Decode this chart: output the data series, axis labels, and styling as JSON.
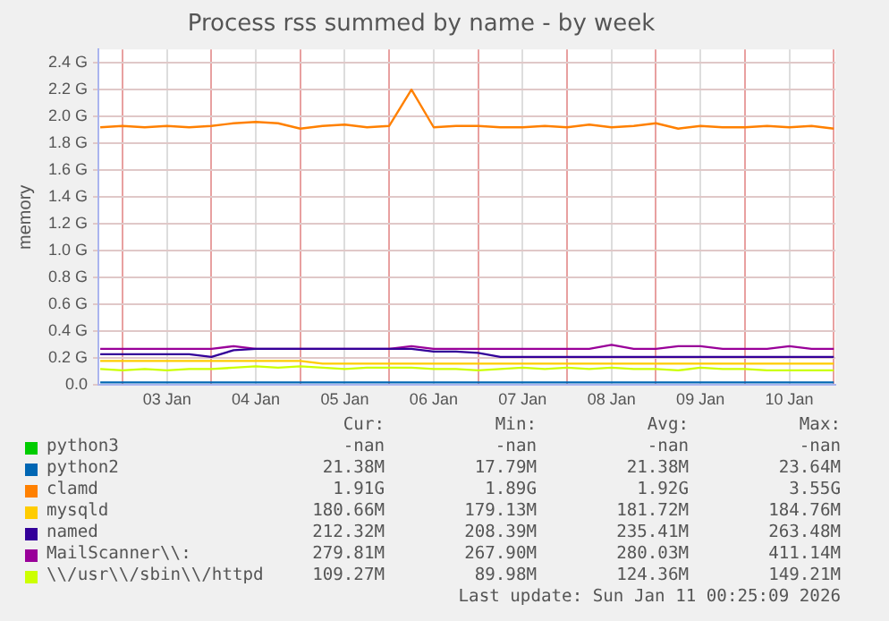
{
  "chart_data": {
    "type": "line",
    "title": "Process rss summed by name - by week",
    "ylabel": "memory",
    "x": [
      "2026-01-02T18:00",
      "2026-01-03T00:00",
      "2026-01-03T06:00",
      "2026-01-03T12:00",
      "2026-01-03T18:00",
      "2026-01-04T00:00",
      "2026-01-04T06:00",
      "2026-01-04T12:00",
      "2026-01-04T18:00",
      "2026-01-05T00:00",
      "2026-01-05T06:00",
      "2026-01-05T12:00",
      "2026-01-05T18:00",
      "2026-01-06T00:00",
      "2026-01-06T06:00",
      "2026-01-06T12:00",
      "2026-01-06T18:00",
      "2026-01-07T00:00",
      "2026-01-07T06:00",
      "2026-01-07T12:00",
      "2026-01-07T18:00",
      "2026-01-08T00:00",
      "2026-01-08T06:00",
      "2026-01-08T12:00",
      "2026-01-08T18:00",
      "2026-01-09T00:00",
      "2026-01-09T06:00",
      "2026-01-09T12:00",
      "2026-01-09T18:00",
      "2026-01-10T00:00",
      "2026-01-10T06:00",
      "2026-01-10T12:00",
      "2026-01-10T18:00",
      "2026-01-11T00:00"
    ],
    "series": [
      {
        "name": "python3",
        "color": "#00cc00",
        "values": [
          null,
          null,
          null,
          null,
          null,
          null,
          null,
          null,
          null,
          null,
          null,
          null,
          null,
          null,
          null,
          null,
          null,
          null,
          null,
          null,
          null,
          null,
          null,
          null,
          null,
          null,
          null,
          null,
          null,
          null,
          null,
          null,
          null,
          null
        ]
      },
      {
        "name": "python2",
        "color": "#0066b3",
        "values": [
          0.02,
          0.02,
          0.02,
          0.02,
          0.02,
          0.02,
          0.02,
          0.02,
          0.02,
          0.02,
          0.02,
          0.02,
          0.02,
          0.02,
          0.02,
          0.02,
          0.02,
          0.02,
          0.02,
          0.02,
          0.02,
          0.02,
          0.02,
          0.02,
          0.02,
          0.02,
          0.02,
          0.02,
          0.02,
          0.02,
          0.02,
          0.02,
          0.02,
          0.02
        ]
      },
      {
        "name": "clamd",
        "color": "#ff8000",
        "values": [
          1.92,
          1.93,
          1.92,
          1.93,
          1.92,
          1.93,
          1.95,
          1.96,
          1.95,
          1.91,
          1.93,
          1.94,
          1.92,
          1.93,
          2.2,
          1.92,
          1.93,
          1.93,
          1.92,
          1.92,
          1.93,
          1.92,
          1.94,
          1.92,
          1.93,
          1.95,
          1.91,
          1.93,
          1.92,
          1.92,
          1.93,
          1.92,
          1.93,
          1.91
        ]
      },
      {
        "name": "mysqld",
        "color": "#ffcc00",
        "values": [
          0.18,
          0.18,
          0.18,
          0.18,
          0.18,
          0.18,
          0.18,
          0.18,
          0.18,
          0.18,
          0.16,
          0.16,
          0.16,
          0.16,
          0.16,
          0.16,
          0.16,
          0.16,
          0.16,
          0.16,
          0.16,
          0.16,
          0.16,
          0.16,
          0.16,
          0.16,
          0.16,
          0.16,
          0.16,
          0.16,
          0.16,
          0.16,
          0.16,
          0.16
        ]
      },
      {
        "name": "named",
        "color": "#330099",
        "values": [
          0.23,
          0.23,
          0.23,
          0.23,
          0.23,
          0.21,
          0.26,
          0.27,
          0.27,
          0.27,
          0.27,
          0.27,
          0.27,
          0.27,
          0.27,
          0.25,
          0.25,
          0.24,
          0.21,
          0.21,
          0.21,
          0.21,
          0.21,
          0.21,
          0.21,
          0.21,
          0.21,
          0.21,
          0.21,
          0.21,
          0.21,
          0.21,
          0.21,
          0.21
        ]
      },
      {
        "name": "MailScanner\\\\:",
        "color": "#990099",
        "values": [
          0.27,
          0.27,
          0.27,
          0.27,
          0.27,
          0.27,
          0.29,
          0.27,
          0.27,
          0.27,
          0.27,
          0.27,
          0.27,
          0.27,
          0.29,
          0.27,
          0.27,
          0.27,
          0.27,
          0.27,
          0.27,
          0.27,
          0.27,
          0.3,
          0.27,
          0.27,
          0.29,
          0.29,
          0.27,
          0.27,
          0.27,
          0.29,
          0.27,
          0.27
        ]
      },
      {
        "name": "\\\\/usr\\\\/sbin\\\\/httpd",
        "color": "#ccff00",
        "values": [
          0.12,
          0.11,
          0.12,
          0.11,
          0.12,
          0.12,
          0.13,
          0.14,
          0.13,
          0.14,
          0.13,
          0.12,
          0.13,
          0.13,
          0.13,
          0.12,
          0.12,
          0.11,
          0.12,
          0.13,
          0.12,
          0.13,
          0.12,
          0.13,
          0.12,
          0.12,
          0.11,
          0.13,
          0.12,
          0.12,
          0.11,
          0.11,
          0.11,
          0.11
        ]
      }
    ],
    "xlim": [
      "2026-01-02T17:30",
      "2026-01-11T00:25"
    ],
    "xticks": [
      {
        "value": "2026-01-03T00:00",
        "label": null
      },
      {
        "value": "2026-01-03T12:00",
        "label": "03 Jan"
      },
      {
        "value": "2026-01-04T00:00",
        "label": null
      },
      {
        "value": "2026-01-04T12:00",
        "label": "04 Jan"
      },
      {
        "value": "2026-01-05T00:00",
        "label": null
      },
      {
        "value": "2026-01-05T12:00",
        "label": "05 Jan"
      },
      {
        "value": "2026-01-06T00:00",
        "label": null
      },
      {
        "value": "2026-01-06T12:00",
        "label": "06 Jan"
      },
      {
        "value": "2026-01-07T00:00",
        "label": null
      },
      {
        "value": "2026-01-07T12:00",
        "label": "07 Jan"
      },
      {
        "value": "2026-01-08T00:00",
        "label": null
      },
      {
        "value": "2026-01-08T12:00",
        "label": "08 Jan"
      },
      {
        "value": "2026-01-09T00:00",
        "label": null
      },
      {
        "value": "2026-01-09T12:00",
        "label": "09 Jan"
      },
      {
        "value": "2026-01-10T00:00",
        "label": null
      },
      {
        "value": "2026-01-10T12:00",
        "label": "10 Jan"
      },
      {
        "value": "2026-01-11T00:00",
        "label": null
      }
    ],
    "ylim": [
      0,
      2.5
    ],
    "yticks": [
      {
        "value": 0,
        "label": "0.0"
      },
      {
        "value": 0.2,
        "label": "0.2 G"
      },
      {
        "value": 0.4,
        "label": "0.4 G"
      },
      {
        "value": 0.6,
        "label": "0.6 G"
      },
      {
        "value": 0.8,
        "label": "0.8 G"
      },
      {
        "value": 1.0,
        "label": "1.0 G"
      },
      {
        "value": 1.2,
        "label": "1.2 G"
      },
      {
        "value": 1.4,
        "label": "1.4 G"
      },
      {
        "value": 1.6,
        "label": "1.6 G"
      },
      {
        "value": 1.8,
        "label": "1.8 G"
      },
      {
        "value": 2.0,
        "label": "2.0 G"
      },
      {
        "value": 2.2,
        "label": "2.2 G"
      },
      {
        "value": 2.4,
        "label": "2.4 G"
      }
    ],
    "grid": true,
    "legend": "bottom",
    "marker": "none",
    "line_style": "solid",
    "annotations": [
      "Cur:",
      "Min:",
      "Avg:",
      "Max:",
      "-nan",
      "-nan",
      "-nan",
      "-nan",
      "21.38M",
      "17.79M",
      "21.38M",
      "23.64M",
      "1.91G",
      "1.89G",
      "1.92G",
      "3.55G",
      "180.66M",
      "179.13M",
      "181.72M",
      "184.76M",
      "212.32M",
      "208.39M",
      "235.41M",
      "263.48M",
      "279.81M",
      "267.90M",
      "280.03M",
      "411.14M",
      "109.27M",
      "89.98M",
      "124.36M",
      "149.21M",
      "Last update: Sun Jan 11 00:25:09 2026"
    ]
  }
}
